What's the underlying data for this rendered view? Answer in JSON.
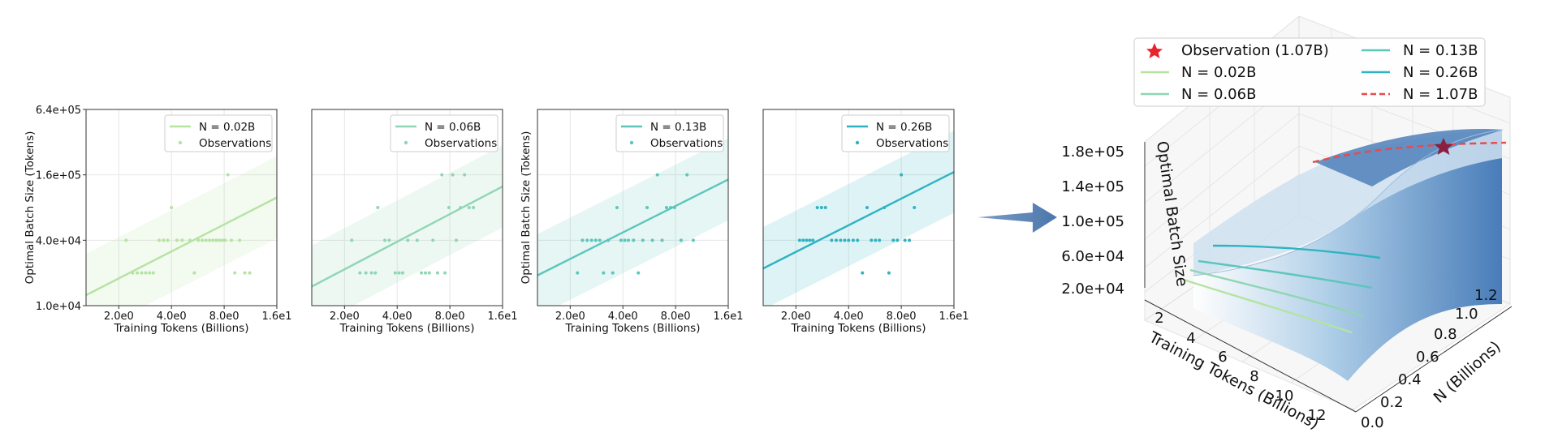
{
  "chart_data": [
    {
      "type": "scatter",
      "panel": "small-multiple-1",
      "series_name": "N = 0.02B",
      "legend": [
        "N = 0.02B",
        "Observations"
      ],
      "xlabel": "Training Tokens (Billions)",
      "ylabel": "Optimal Batch Size (Tokens)",
      "xscale": "log",
      "yscale": "log",
      "xlim": [
        1.3,
        16
      ],
      "ylim": [
        10000,
        640000
      ],
      "xticks": [
        "2.0e0",
        "4.0e0",
        "8.0e0",
        "1.6e1"
      ],
      "yticks": [
        "1.0e+04",
        "4.0e+04",
        "1.6e+05",
        "6.4e+05"
      ],
      "fit_line": {
        "x": [
          1.3,
          16
        ],
        "y": [
          12500,
          99000
        ]
      },
      "band": {
        "lower_factor": 0.42,
        "upper_factor": 2.4
      },
      "color": "#b5e3a2",
      "points": [
        {
          "x": 2.2,
          "y": 40000
        },
        {
          "x": 2.4,
          "y": 20000
        },
        {
          "x": 2.55,
          "y": 20000
        },
        {
          "x": 2.7,
          "y": 20000
        },
        {
          "x": 2.85,
          "y": 20000
        },
        {
          "x": 3.0,
          "y": 20000
        },
        {
          "x": 3.15,
          "y": 20000
        },
        {
          "x": 3.4,
          "y": 40000
        },
        {
          "x": 3.6,
          "y": 40000
        },
        {
          "x": 3.8,
          "y": 40000
        },
        {
          "x": 4.0,
          "y": 80000
        },
        {
          "x": 4.3,
          "y": 40000
        },
        {
          "x": 4.6,
          "y": 40000
        },
        {
          "x": 5.1,
          "y": 40000
        },
        {
          "x": 5.4,
          "y": 20000
        },
        {
          "x": 5.7,
          "y": 40000
        },
        {
          "x": 6.0,
          "y": 40000
        },
        {
          "x": 6.3,
          "y": 40000
        },
        {
          "x": 6.6,
          "y": 40000
        },
        {
          "x": 6.9,
          "y": 40000
        },
        {
          "x": 7.2,
          "y": 40000
        },
        {
          "x": 7.5,
          "y": 40000
        },
        {
          "x": 7.8,
          "y": 40000
        },
        {
          "x": 8.1,
          "y": 40000
        },
        {
          "x": 8.4,
          "y": 160000
        },
        {
          "x": 8.8,
          "y": 40000
        },
        {
          "x": 9.2,
          "y": 20000
        },
        {
          "x": 9.8,
          "y": 40000
        },
        {
          "x": 10.5,
          "y": 20000
        },
        {
          "x": 11.2,
          "y": 20000
        }
      ]
    },
    {
      "type": "scatter",
      "panel": "small-multiple-2",
      "series_name": "N = 0.06B",
      "legend": [
        "N = 0.06B",
        "Observations"
      ],
      "xlabel": "Training Tokens (Billions)",
      "ylabel": "",
      "xscale": "log",
      "yscale": "log",
      "xlim": [
        1.3,
        16
      ],
      "ylim": [
        10000,
        640000
      ],
      "xticks": [
        "2.0e0",
        "4.0e0",
        "8.0e0",
        "1.6e1"
      ],
      "yticks": [],
      "fit_line": {
        "x": [
          1.3,
          16
        ],
        "y": [
          15000,
          125000
        ]
      },
      "band": {
        "lower_factor": 0.42,
        "upper_factor": 2.4
      },
      "color": "#8fd6b4",
      "points": [
        {
          "x": 2.2,
          "y": 40000
        },
        {
          "x": 2.45,
          "y": 20000
        },
        {
          "x": 2.65,
          "y": 20000
        },
        {
          "x": 2.85,
          "y": 20000
        },
        {
          "x": 3.0,
          "y": 20000
        },
        {
          "x": 3.1,
          "y": 80000
        },
        {
          "x": 3.4,
          "y": 40000
        },
        {
          "x": 3.6,
          "y": 40000
        },
        {
          "x": 3.9,
          "y": 20000
        },
        {
          "x": 4.1,
          "y": 20000
        },
        {
          "x": 4.3,
          "y": 20000
        },
        {
          "x": 4.6,
          "y": 40000
        },
        {
          "x": 5.2,
          "y": 40000
        },
        {
          "x": 5.5,
          "y": 20000
        },
        {
          "x": 5.8,
          "y": 20000
        },
        {
          "x": 6.1,
          "y": 20000
        },
        {
          "x": 6.4,
          "y": 40000
        },
        {
          "x": 6.8,
          "y": 20000
        },
        {
          "x": 7.2,
          "y": 160000
        },
        {
          "x": 7.5,
          "y": 20000
        },
        {
          "x": 7.9,
          "y": 80000
        },
        {
          "x": 8.3,
          "y": 160000
        },
        {
          "x": 8.7,
          "y": 40000
        },
        {
          "x": 9.2,
          "y": 80000
        },
        {
          "x": 9.7,
          "y": 160000
        },
        {
          "x": 10.3,
          "y": 80000
        },
        {
          "x": 10.9,
          "y": 80000
        }
      ]
    },
    {
      "type": "scatter",
      "panel": "small-multiple-3",
      "series_name": "N = 0.13B",
      "legend": [
        "N = 0.13B",
        "Observations"
      ],
      "xlabel": "Training Tokens (Billions)",
      "ylabel": "Optimal Batch Size (Tokens)",
      "xscale": "log",
      "yscale": "log",
      "xlim": [
        1.3,
        16
      ],
      "ylim": [
        10000,
        640000
      ],
      "xticks": [
        "2.0e0",
        "4.0e0",
        "8.0e0",
        "1.6e1"
      ],
      "yticks": [],
      "fit_line": {
        "x": [
          1.3,
          16
        ],
        "y": [
          19000,
          145000
        ]
      },
      "band": {
        "lower_factor": 0.42,
        "upper_factor": 2.4
      },
      "color": "#5cc6bc",
      "points": [
        {
          "x": 2.2,
          "y": 20000
        },
        {
          "x": 2.35,
          "y": 40000
        },
        {
          "x": 2.5,
          "y": 40000
        },
        {
          "x": 2.65,
          "y": 40000
        },
        {
          "x": 2.8,
          "y": 40000
        },
        {
          "x": 2.95,
          "y": 40000
        },
        {
          "x": 3.1,
          "y": 20000
        },
        {
          "x": 3.3,
          "y": 40000
        },
        {
          "x": 3.5,
          "y": 20000
        },
        {
          "x": 3.7,
          "y": 80000
        },
        {
          "x": 3.9,
          "y": 40000
        },
        {
          "x": 4.1,
          "y": 40000
        },
        {
          "x": 4.3,
          "y": 40000
        },
        {
          "x": 4.6,
          "y": 40000
        },
        {
          "x": 4.9,
          "y": 20000
        },
        {
          "x": 5.2,
          "y": 40000
        },
        {
          "x": 5.5,
          "y": 80000
        },
        {
          "x": 5.9,
          "y": 40000
        },
        {
          "x": 6.3,
          "y": 160000
        },
        {
          "x": 6.7,
          "y": 40000
        },
        {
          "x": 7.1,
          "y": 80000
        },
        {
          "x": 7.5,
          "y": 80000
        },
        {
          "x": 7.9,
          "y": 80000
        },
        {
          "x": 8.6,
          "y": 40000
        },
        {
          "x": 9.3,
          "y": 160000
        },
        {
          "x": 10.1,
          "y": 40000
        }
      ]
    },
    {
      "type": "scatter",
      "panel": "small-multiple-4",
      "series_name": "N = 0.26B",
      "legend": [
        "N = 0.26B",
        "Observations"
      ],
      "xlabel": "Training Tokens (Billions)",
      "ylabel": "",
      "xscale": "log",
      "yscale": "log",
      "xlim": [
        1.3,
        16
      ],
      "ylim": [
        10000,
        640000
      ],
      "xticks": [
        "2.0e0",
        "4.0e0",
        "8.0e0",
        "1.6e1"
      ],
      "yticks": [],
      "fit_line": {
        "x": [
          1.3,
          16
        ],
        "y": [
          22000,
          170000
        ]
      },
      "band": {
        "lower_factor": 0.42,
        "upper_factor": 2.4
      },
      "color": "#2fb3c2",
      "points": [
        {
          "x": 2.1,
          "y": 40000
        },
        {
          "x": 2.2,
          "y": 40000
        },
        {
          "x": 2.3,
          "y": 40000
        },
        {
          "x": 2.4,
          "y": 40000
        },
        {
          "x": 2.5,
          "y": 40000
        },
        {
          "x": 2.65,
          "y": 80000
        },
        {
          "x": 2.8,
          "y": 80000
        },
        {
          "x": 2.95,
          "y": 80000
        },
        {
          "x": 3.2,
          "y": 40000
        },
        {
          "x": 3.4,
          "y": 40000
        },
        {
          "x": 3.6,
          "y": 40000
        },
        {
          "x": 3.8,
          "y": 40000
        },
        {
          "x": 4.0,
          "y": 40000
        },
        {
          "x": 4.25,
          "y": 40000
        },
        {
          "x": 4.5,
          "y": 40000
        },
        {
          "x": 4.8,
          "y": 20000
        },
        {
          "x": 5.1,
          "y": 80000
        },
        {
          "x": 5.4,
          "y": 40000
        },
        {
          "x": 5.7,
          "y": 40000
        },
        {
          "x": 6.0,
          "y": 40000
        },
        {
          "x": 6.4,
          "y": 80000
        },
        {
          "x": 6.8,
          "y": 20000
        },
        {
          "x": 7.2,
          "y": 40000
        },
        {
          "x": 7.6,
          "y": 40000
        },
        {
          "x": 8.0,
          "y": 160000
        },
        {
          "x": 8.4,
          "y": 40000
        },
        {
          "x": 8.9,
          "y": 40000
        },
        {
          "x": 9.5,
          "y": 80000
        }
      ]
    },
    {
      "type": "surface3d",
      "panel": "surface",
      "zlabel": "Optimal Batch Size",
      "xlabel": "Training Tokens (Billions)",
      "ylabel": "N (Billions)",
      "xticks": [
        "2",
        "4",
        "6",
        "8",
        "10",
        "12"
      ],
      "yticks": [
        "0.0",
        "0.2",
        "0.4",
        "0.6",
        "0.8",
        "1.0",
        "1.2"
      ],
      "zticks": [
        "2.0e+04",
        "6.0e+04",
        "1.0e+05",
        "1.4e+05",
        "1.8e+05"
      ],
      "legend": [
        {
          "label": "Observation (1.07B)",
          "style": "star",
          "color": "#e8232b"
        },
        {
          "label": "N = 0.02B",
          "style": "line",
          "color": "#b5e3a2"
        },
        {
          "label": "N = 0.06B",
          "style": "line",
          "color": "#8fd6b4"
        },
        {
          "label": "N = 0.13B",
          "style": "line",
          "color": "#5cc6bc"
        },
        {
          "label": "N = 0.26B",
          "style": "line",
          "color": "#2fb3c2"
        },
        {
          "label": "N = 1.07B",
          "style": "dashed",
          "color": "#e84a4a"
        }
      ]
    }
  ]
}
